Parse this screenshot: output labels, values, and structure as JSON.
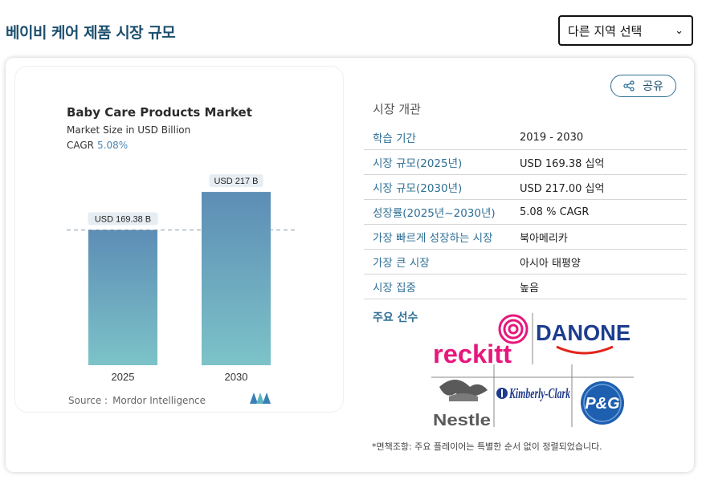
{
  "page": {
    "title": "베이비 케어 제품 시장 규모"
  },
  "region_select": {
    "value": "다른 지역 선택"
  },
  "chart_data": {
    "type": "bar",
    "title": "Baby Care Products Market",
    "subtitle": "Market Size in USD Billion",
    "cagr_label": "CAGR",
    "cagr_value": "5.08%",
    "categories": [
      "2025",
      "2030"
    ],
    "values": [
      169.38,
      217
    ],
    "data_labels": [
      "USD 169.38 B",
      "USD 217 B"
    ],
    "source_label": "Source :",
    "source_value": "Mordor Intelligence",
    "colors": {
      "bar_top": "#5d8db5",
      "bar_bottom": "#7cc3c8"
    }
  },
  "share": {
    "label": "공유",
    "icon": "share-icon"
  },
  "overview": {
    "title": "시장 개관",
    "rows": [
      {
        "key": "학습 기간",
        "value": "2019 - 2030"
      },
      {
        "key": "시장 규모(2025년)",
        "value": "USD 169.38 십억"
      },
      {
        "key": "시장 규모(2030년)",
        "value": "USD 217.00 십억"
      },
      {
        "key": "성장률(2025년~2030년)",
        "value": "5.08 % CAGR"
      },
      {
        "key": "가장 빠르게 성장하는 시장",
        "value": "북아메리카"
      },
      {
        "key": "가장 큰 시장",
        "value": "아시아 태평양"
      },
      {
        "key": "시장 집중",
        "value": "높음"
      }
    ]
  },
  "players": {
    "label": "주요 선수",
    "logos": [
      "reckitt",
      "DANONE",
      "Nestle",
      "Kimberly-Clark",
      "P&G"
    ]
  },
  "disclaimer": "*면책조항: 주요 플레이어는 특별한 순서 없이 정렬되었습니다."
}
